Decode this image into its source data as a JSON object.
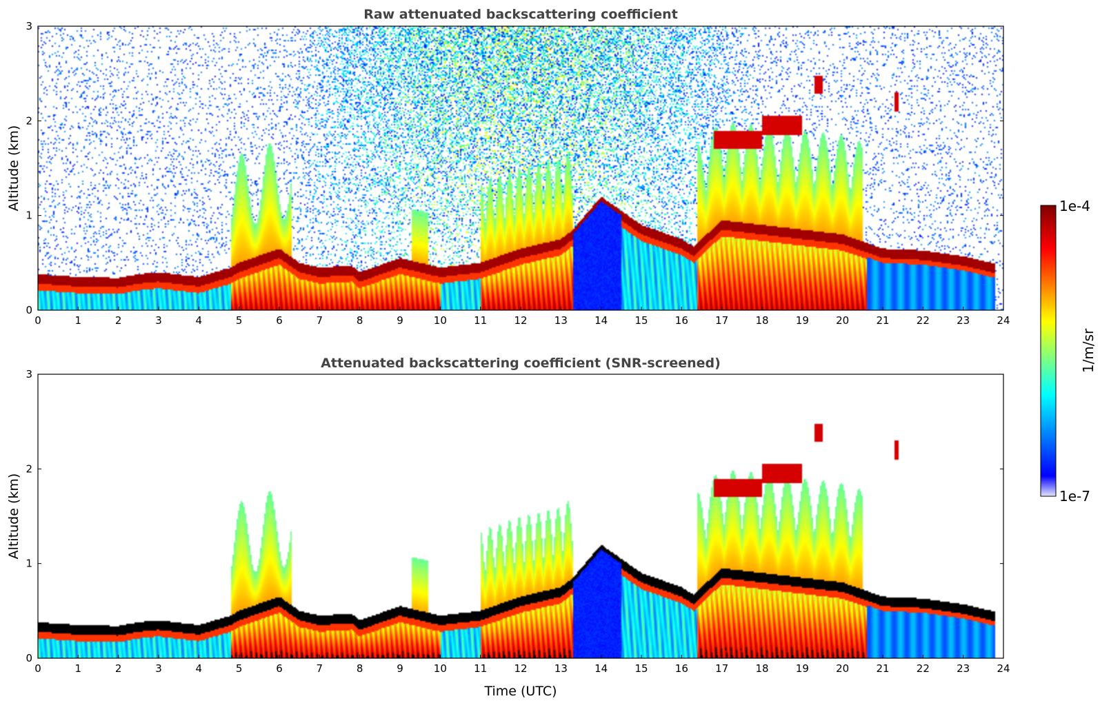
{
  "chart_data": [
    {
      "type": "heatmap",
      "title": "Raw attenuated backscattering coefficient",
      "xlabel": "",
      "ylabel": "Altitude (km)",
      "xlim": [
        0,
        24
      ],
      "ylim": [
        0,
        3
      ],
      "xticks": [
        "0",
        "1",
        "2",
        "3",
        "4",
        "5",
        "6",
        "7",
        "8",
        "9",
        "10",
        "11",
        "12",
        "13",
        "14",
        "15",
        "16",
        "17",
        "18",
        "19",
        "20",
        "21",
        "22",
        "23",
        "24"
      ],
      "yticks": [
        "0",
        "1",
        "2",
        "3"
      ],
      "boundary_layer_top_km": {
        "x": [
          0,
          1,
          2,
          2.5,
          3,
          4,
          4.8,
          5,
          6,
          6.5,
          7,
          7.8,
          8,
          9,
          9.5,
          10,
          11,
          12,
          13,
          13.3,
          14,
          14.5,
          15,
          16,
          16.3,
          17,
          18,
          19,
          20,
          21,
          22,
          23,
          23.7
        ],
        "y": [
          0.33,
          0.3,
          0.29,
          0.33,
          0.35,
          0.3,
          0.4,
          0.45,
          0.6,
          0.45,
          0.4,
          0.42,
          0.35,
          0.5,
          0.45,
          0.4,
          0.45,
          0.6,
          0.7,
          0.8,
          1.15,
          1.0,
          0.85,
          0.7,
          0.62,
          0.9,
          0.85,
          0.8,
          0.75,
          0.6,
          0.58,
          0.52,
          0.45
        ]
      },
      "elevated_cloud_layers": [
        {
          "x_start": 16.8,
          "x_end": 18.0,
          "y_km": 1.8
        },
        {
          "x_start": 18.0,
          "x_end": 19.0,
          "y_km": 1.95
        },
        {
          "x_start": 19.3,
          "x_end": 19.5,
          "y_km": 2.38
        },
        {
          "x_start": 21.3,
          "x_end": 21.4,
          "y_km": 2.2
        }
      ]
    },
    {
      "type": "heatmap",
      "title": "Attenuated backscattering coefficient (SNR-screened)",
      "xlabel": "Time (UTC)",
      "ylabel": "Altitude (km)",
      "xlim": [
        0,
        24
      ],
      "ylim": [
        0,
        3
      ],
      "xticks": [
        "0",
        "1",
        "2",
        "3",
        "4",
        "5",
        "6",
        "7",
        "8",
        "9",
        "10",
        "11",
        "12",
        "13",
        "14",
        "15",
        "16",
        "17",
        "18",
        "19",
        "20",
        "21",
        "22",
        "23",
        "24"
      ],
      "yticks": [
        "0",
        "1",
        "2",
        "3"
      ]
    }
  ],
  "colorbar": {
    "max_label": "1e-4",
    "min_label": "1e-7",
    "unit_label": "1/m/sr",
    "scale": "log",
    "colormap": "jet",
    "stops": [
      "#e6e6ff",
      "#0000ff",
      "#00ffff",
      "#ffff00",
      "#ff0000",
      "#800000"
    ]
  }
}
